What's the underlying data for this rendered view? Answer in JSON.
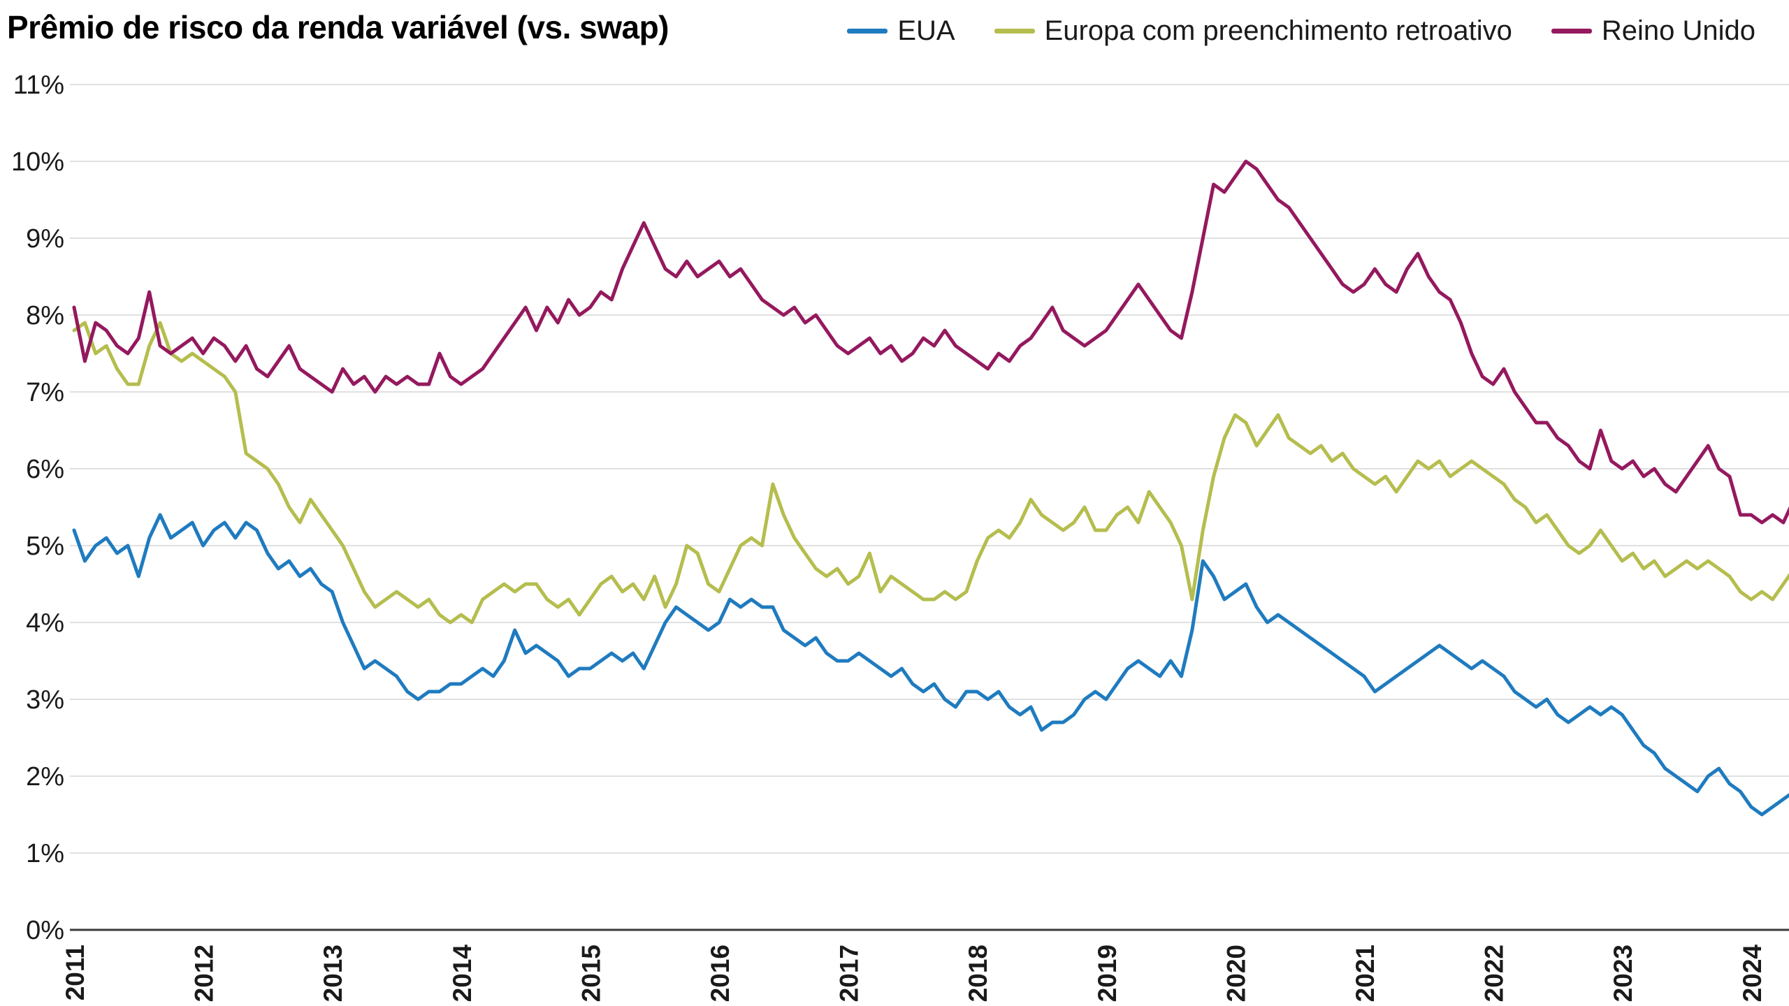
{
  "chart_data": {
    "type": "line",
    "title": "Prêmio de risco da renda variável (vs. swap)",
    "xlabel": "",
    "ylabel": "",
    "ylim": [
      0,
      11
    ],
    "grid": "horizontal",
    "legend_position": "top-right",
    "frequency": "monthly",
    "x_range": "2011-01 to 2024-06",
    "y_ticks": [
      "0%",
      "1%",
      "2%",
      "3%",
      "4%",
      "5%",
      "6%",
      "7%",
      "8%",
      "9%",
      "10%",
      "11%"
    ],
    "x_tick_labels": [
      "2011",
      "2012",
      "2013",
      "2014",
      "2015",
      "2016",
      "2017",
      "2018",
      "2019",
      "2020",
      "2021",
      "2022",
      "2023",
      "2024"
    ],
    "series": [
      {
        "name": "EUA",
        "color": "#1f7bbf",
        "values": [
          5.2,
          4.8,
          5.0,
          5.1,
          4.9,
          5.0,
          4.6,
          5.1,
          5.4,
          5.1,
          5.2,
          5.3,
          5.0,
          5.2,
          5.3,
          5.1,
          5.3,
          5.2,
          4.9,
          4.7,
          4.8,
          4.6,
          4.7,
          4.5,
          4.4,
          4.0,
          3.7,
          3.4,
          3.5,
          3.4,
          3.3,
          3.1,
          3.0,
          3.1,
          3.1,
          3.2,
          3.2,
          3.3,
          3.4,
          3.3,
          3.5,
          3.9,
          3.6,
          3.7,
          3.6,
          3.5,
          3.3,
          3.4,
          3.4,
          3.5,
          3.6,
          3.5,
          3.6,
          3.4,
          3.7,
          4.0,
          4.2,
          4.1,
          4.0,
          3.9,
          4.0,
          4.3,
          4.2,
          4.3,
          4.2,
          4.2,
          3.9,
          3.8,
          3.7,
          3.8,
          3.6,
          3.5,
          3.5,
          3.6,
          3.5,
          3.4,
          3.3,
          3.4,
          3.2,
          3.1,
          3.2,
          3.0,
          2.9,
          3.1,
          3.1,
          3.0,
          3.1,
          2.9,
          2.8,
          2.9,
          2.6,
          2.7,
          2.7,
          2.8,
          3.0,
          3.1,
          3.0,
          3.2,
          3.4,
          3.5,
          3.4,
          3.3,
          3.5,
          3.3,
          3.9,
          4.8,
          4.6,
          4.3,
          4.4,
          4.5,
          4.2,
          4.0,
          4.1,
          4.0,
          3.9,
          3.8,
          3.7,
          3.6,
          3.5,
          3.4,
          3.3,
          3.1,
          3.2,
          3.3,
          3.4,
          3.5,
          3.6,
          3.7,
          3.6,
          3.5,
          3.4,
          3.5,
          3.4,
          3.3,
          3.1,
          3.0,
          2.9,
          3.0,
          2.8,
          2.7,
          2.8,
          2.9,
          2.8,
          2.9,
          2.8,
          2.6,
          2.4,
          2.3,
          2.1,
          2.0,
          1.9,
          1.8,
          2.0,
          2.1,
          1.9,
          1.8,
          1.6,
          1.5,
          1.6,
          1.7,
          1.8,
          1.7
        ]
      },
      {
        "name": "Europa com preenchimento retroativo",
        "color": "#b5bd4e",
        "values": [
          7.8,
          7.9,
          7.5,
          7.6,
          7.3,
          7.1,
          7.1,
          7.6,
          7.9,
          7.5,
          7.4,
          7.5,
          7.4,
          7.3,
          7.2,
          7.0,
          6.2,
          6.1,
          6.0,
          5.8,
          5.5,
          5.3,
          5.6,
          5.4,
          5.2,
          5.0,
          4.7,
          4.4,
          4.2,
          4.3,
          4.4,
          4.3,
          4.2,
          4.3,
          4.1,
          4.0,
          4.1,
          4.0,
          4.3,
          4.4,
          4.5,
          4.4,
          4.5,
          4.5,
          4.3,
          4.2,
          4.3,
          4.1,
          4.3,
          4.5,
          4.6,
          4.4,
          4.5,
          4.3,
          4.6,
          4.2,
          4.5,
          5.0,
          4.9,
          4.5,
          4.4,
          4.7,
          5.0,
          5.1,
          5.0,
          5.8,
          5.4,
          5.1,
          4.9,
          4.7,
          4.6,
          4.7,
          4.5,
          4.6,
          4.9,
          4.4,
          4.6,
          4.5,
          4.4,
          4.3,
          4.3,
          4.4,
          4.3,
          4.4,
          4.8,
          5.1,
          5.2,
          5.1,
          5.3,
          5.6,
          5.4,
          5.3,
          5.2,
          5.3,
          5.5,
          5.2,
          5.2,
          5.4,
          5.5,
          5.3,
          5.7,
          5.5,
          5.3,
          5.0,
          4.3,
          5.2,
          5.9,
          6.4,
          6.7,
          6.6,
          6.3,
          6.5,
          6.7,
          6.4,
          6.3,
          6.2,
          6.3,
          6.1,
          6.2,
          6.0,
          5.9,
          5.8,
          5.9,
          5.7,
          5.9,
          6.1,
          6.0,
          6.1,
          5.9,
          6.0,
          6.1,
          6.0,
          5.9,
          5.8,
          5.6,
          5.5,
          5.3,
          5.4,
          5.2,
          5.0,
          4.9,
          5.0,
          5.2,
          5.0,
          4.8,
          4.9,
          4.7,
          4.8,
          4.6,
          4.7,
          4.8,
          4.7,
          4.8,
          4.7,
          4.6,
          4.4,
          4.3,
          4.4,
          4.3,
          4.5,
          4.7,
          4.9
        ]
      },
      {
        "name": "Reino Unido",
        "color": "#94195e",
        "values": [
          8.1,
          7.4,
          7.9,
          7.8,
          7.6,
          7.5,
          7.7,
          8.3,
          7.6,
          7.5,
          7.6,
          7.7,
          7.5,
          7.7,
          7.6,
          7.4,
          7.6,
          7.3,
          7.2,
          7.4,
          7.6,
          7.3,
          7.2,
          7.1,
          7.0,
          7.3,
          7.1,
          7.2,
          7.0,
          7.2,
          7.1,
          7.2,
          7.1,
          7.1,
          7.5,
          7.2,
          7.1,
          7.2,
          7.3,
          7.5,
          7.7,
          7.9,
          8.1,
          7.8,
          8.1,
          7.9,
          8.2,
          8.0,
          8.1,
          8.3,
          8.2,
          8.6,
          8.9,
          9.2,
          8.9,
          8.6,
          8.5,
          8.7,
          8.5,
          8.6,
          8.7,
          8.5,
          8.6,
          8.4,
          8.2,
          8.1,
          8.0,
          8.1,
          7.9,
          8.0,
          7.8,
          7.6,
          7.5,
          7.6,
          7.7,
          7.5,
          7.6,
          7.4,
          7.5,
          7.7,
          7.6,
          7.8,
          7.6,
          7.5,
          7.4,
          7.3,
          7.5,
          7.4,
          7.6,
          7.7,
          7.9,
          8.1,
          7.8,
          7.7,
          7.6,
          7.7,
          7.8,
          8.0,
          8.2,
          8.4,
          8.2,
          8.0,
          7.8,
          7.7,
          8.3,
          9.0,
          9.7,
          9.6,
          9.8,
          10.0,
          9.9,
          9.7,
          9.5,
          9.4,
          9.2,
          9.0,
          8.8,
          8.6,
          8.4,
          8.3,
          8.4,
          8.6,
          8.4,
          8.3,
          8.6,
          8.8,
          8.5,
          8.3,
          8.2,
          7.9,
          7.5,
          7.2,
          7.1,
          7.3,
          7.0,
          6.8,
          6.6,
          6.6,
          6.4,
          6.3,
          6.1,
          6.0,
          6.5,
          6.1,
          6.0,
          6.1,
          5.9,
          6.0,
          5.8,
          5.7,
          5.9,
          6.1,
          6.3,
          6.0,
          5.9,
          5.4,
          5.4,
          5.3,
          5.4,
          5.3,
          5.6,
          5.5
        ]
      }
    ]
  }
}
